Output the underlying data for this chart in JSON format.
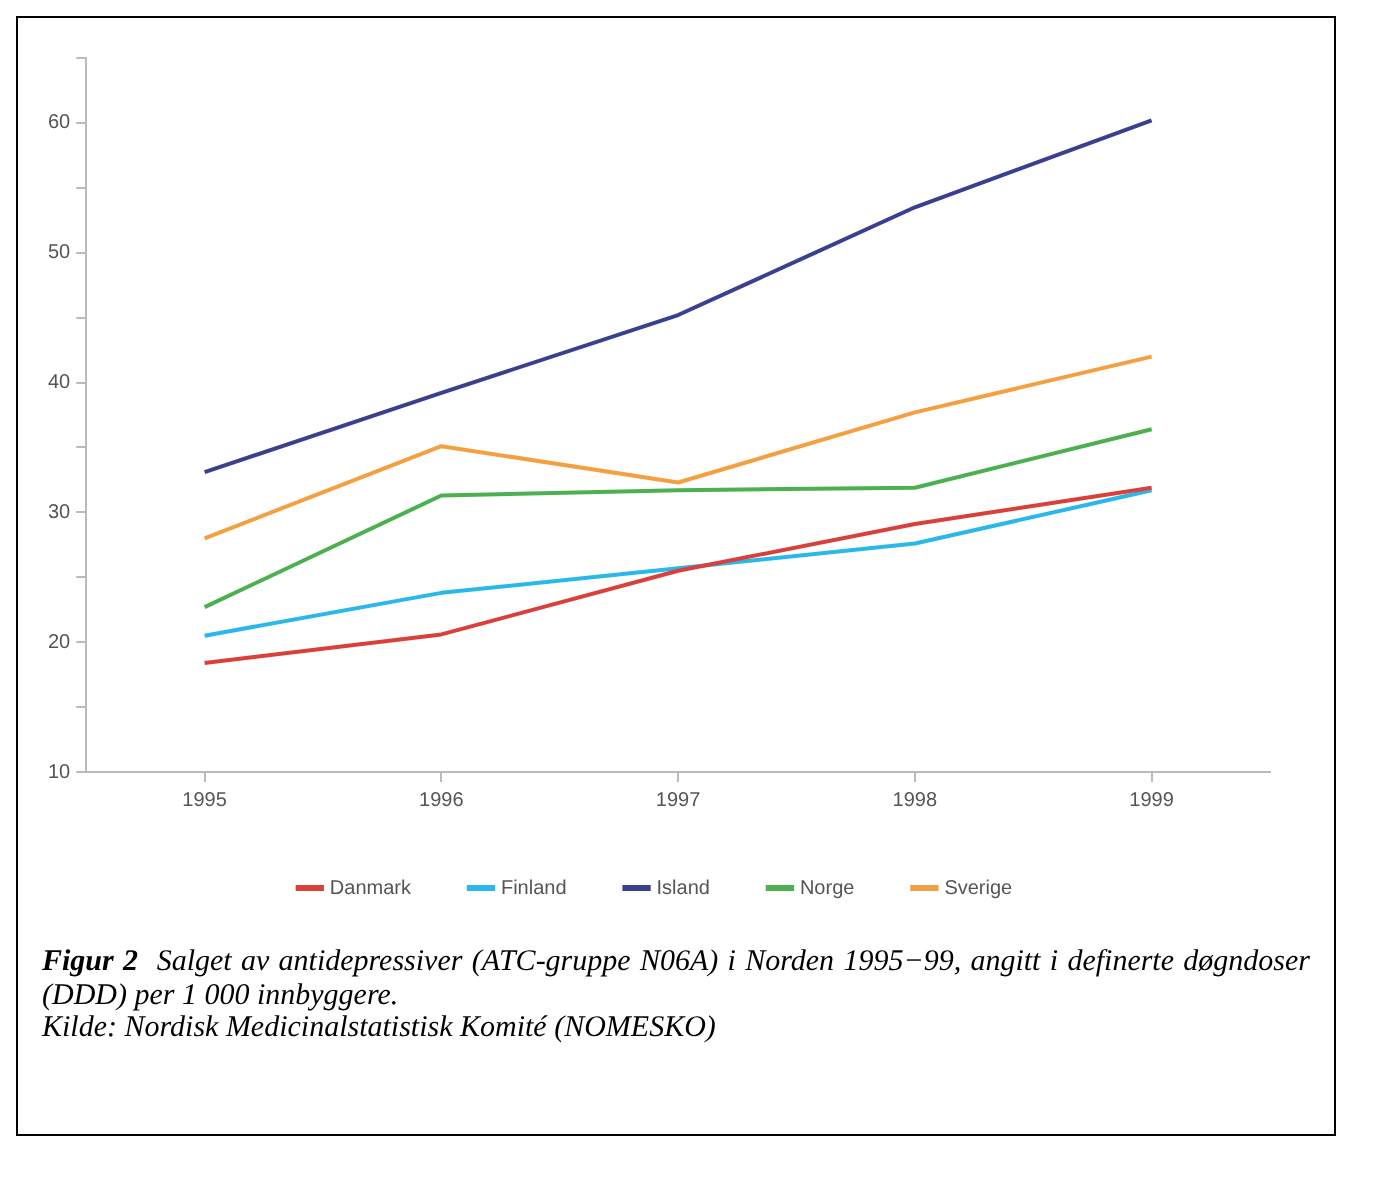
{
  "chart_data": {
    "type": "line",
    "title": "Figur 2",
    "subtitle": "Salget av antidepressiver (ATC-gruppe N06A) i Norden 1995−99, angitt i definerte døgndoser (DDD) per 1 000 innbyggere.",
    "annotations": [
      "Kilde: Nordisk Medicinalstatistisk Komité (NOMESKO)"
    ],
    "categories": [
      "1995",
      "1996",
      "1997",
      "1998",
      "1999"
    ],
    "series": [
      {
        "name": "Danmark",
        "color": "#d9403a",
        "values": [
          18.4,
          20.6,
          25.5,
          29.1,
          31.9
        ]
      },
      {
        "name": "Finland",
        "color": "#2ab7ea",
        "values": [
          20.5,
          23.8,
          25.7,
          27.6,
          31.7
        ]
      },
      {
        "name": "Island",
        "color": "#3a3f8f",
        "values": [
          33.1,
          39.2,
          45.2,
          53.5,
          60.2
        ]
      },
      {
        "name": "Norge",
        "color": "#4caf50",
        "values": [
          22.7,
          31.3,
          31.7,
          31.9,
          36.4
        ]
      },
      {
        "name": "Sverige",
        "color": "#f5a040",
        "values": [
          28.0,
          35.1,
          32.3,
          37.7,
          42.0
        ]
      }
    ],
    "ylim": [
      10,
      65
    ],
    "yticks": [
      10,
      {
        "value": 15,
        "label": null
      },
      20,
      {
        "value": 25,
        "label": null
      },
      30,
      {
        "value": 35,
        "label": null
      },
      40,
      {
        "value": 45,
        "label": null
      },
      50,
      {
        "value": 55,
        "label": null
      },
      60,
      {
        "value": 65,
        "label": null
      }
    ],
    "grid": false,
    "legend": "bottom",
    "marker": "none",
    "line_style": "solid"
  }
}
